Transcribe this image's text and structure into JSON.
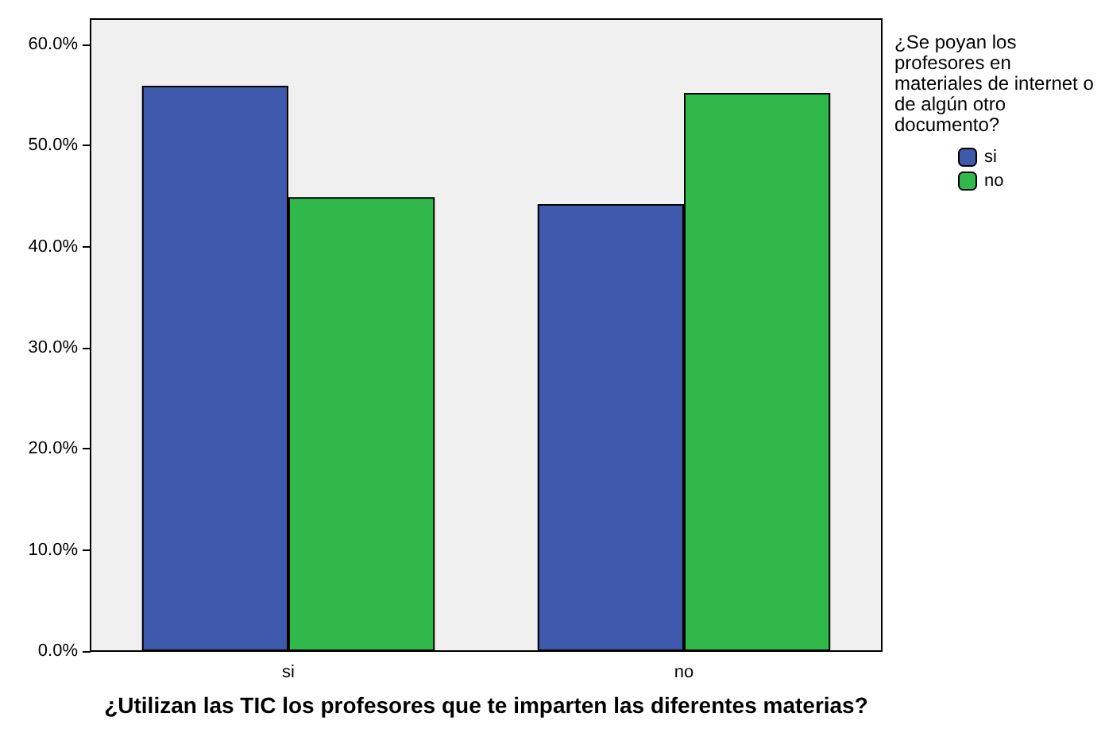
{
  "chart_data": {
    "type": "bar",
    "xlabel": "¿Utilizan las TIC los profesores que te imparten las diferentes materias?",
    "legend_title": "¿Se poyan los profesores en materiales de internet o de algún otro documento?",
    "categories": [
      "si",
      "no"
    ],
    "series": [
      {
        "name": "si",
        "color": "#3e58ab",
        "values": [
          55.9,
          44.2
        ]
      },
      {
        "name": "no",
        "color": "#30b84a",
        "values": [
          44.9,
          55.2
        ]
      }
    ],
    "ylim": [
      0,
      62.5
    ],
    "yticks": [
      {
        "value": 0,
        "label": "0.0%"
      },
      {
        "value": 10,
        "label": "10.0%"
      },
      {
        "value": 20,
        "label": "20.0%"
      },
      {
        "value": 30,
        "label": "30.0%"
      },
      {
        "value": 40,
        "label": "40.0%"
      },
      {
        "value": 50,
        "label": "50.0%"
      },
      {
        "value": 60,
        "label": "60.0%"
      }
    ],
    "grid": false,
    "legend": "right"
  }
}
